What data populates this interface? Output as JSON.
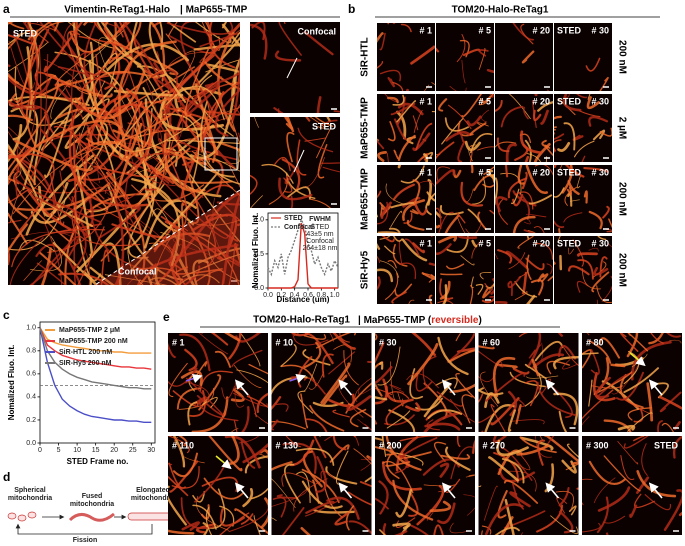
{
  "panel_a": {
    "label": "a",
    "title": "Vimentin-ReTag1-Halo",
    "title2": "| MaP655-TMP",
    "main_labels": [
      "STED",
      "Confocal"
    ],
    "inset_labels": [
      "Confocal",
      "STED"
    ],
    "plot": {
      "type": "line",
      "xlabel": "Distance (um)",
      "ylabel": "Nomalized Fluo. Int.",
      "xlim": [
        0,
        1.05
      ],
      "ylim": [
        0,
        1.1
      ],
      "xticks": [
        {
          "value": 0,
          "label": "0.0"
        },
        {
          "value": 0.2,
          "label": "0.2"
        },
        {
          "value": 0.4,
          "label": "0.4"
        },
        {
          "value": 0.6,
          "label": "0.6"
        },
        {
          "value": 0.8,
          "label": "0.8"
        },
        {
          "value": 1,
          "label": "1.0"
        }
      ],
      "yticks": [
        {
          "value": 0,
          "label": "0.0"
        },
        {
          "value": 0.5,
          "label": "0.5"
        },
        {
          "value": 1,
          "label": "1.0"
        }
      ],
      "x": [
        0,
        0.05,
        0.1,
        0.15,
        0.2,
        0.25,
        0.3,
        0.35,
        0.4,
        0.45,
        0.5,
        0.55,
        0.6,
        0.65,
        0.7,
        0.75,
        0.8,
        0.85,
        0.9,
        0.95,
        1,
        1.05
      ],
      "series": [
        {
          "name": "STED",
          "color": "#d62a1e",
          "dash": false,
          "values": [
            0,
            0,
            0,
            0,
            0,
            0,
            0,
            0,
            0.02,
            0.12,
            0.95,
            0.8,
            0.06,
            0,
            0,
            0,
            0,
            0,
            0,
            0,
            0,
            0
          ]
        },
        {
          "name": "Confocal",
          "color": "#777777",
          "dash": true,
          "values": [
            0.3,
            0.2,
            0.4,
            0.3,
            0.5,
            0.2,
            0.45,
            0.55,
            0.7,
            0.85,
            1,
            0.9,
            0.65,
            0.55,
            0.35,
            0.45,
            0.3,
            0.2,
            0.35,
            0.25,
            0.4,
            0.3
          ]
        }
      ],
      "fwhm_title": "FWHM",
      "fwhm_lines": [
        {
          "text": "STED",
          "color": "#d62a1e"
        },
        {
          "text": "43±5 nm",
          "color": "#d62a1e"
        },
        {
          "text": "Confocal",
          "color": "#888888"
        },
        {
          "text": "264±18 nm",
          "color": "#888888"
        }
      ]
    }
  },
  "panel_b": {
    "label": "b",
    "title": "TOM20-Halo-ReTag1",
    "frames": [
      "# 1",
      "# 5",
      "# 20",
      "# 30"
    ],
    "sted": "STED",
    "rows": [
      {
        "label": "SiR-HTL",
        "conc": "200 nM"
      },
      {
        "label": "MaP655-TMP",
        "conc": "2 µM"
      },
      {
        "label": "MaP655-TMP",
        "conc": "200 nM"
      },
      {
        "label": "SiR-Hy5",
        "conc": "200 nM"
      }
    ]
  },
  "panel_c": {
    "label": "c",
    "plot": {
      "type": "line",
      "xlabel": "STED Frame no.",
      "ylabel": "Nomalized Fluo. Int.",
      "xlim": [
        0,
        31
      ],
      "ylim": [
        0,
        1.05
      ],
      "xticks": [
        0,
        5,
        10,
        15,
        20,
        25,
        30
      ],
      "yticks": [
        {
          "value": 0,
          "label": "0.0"
        },
        {
          "value": 0.2,
          "label": "0.2"
        },
        {
          "value": 0.4,
          "label": "0.4"
        },
        {
          "value": 0.6,
          "label": "0.6"
        },
        {
          "value": 0.8,
          "label": "0.8"
        },
        {
          "value": 1,
          "label": "1.0"
        }
      ],
      "reference_line": 0.5,
      "x": [
        0,
        2,
        4,
        6,
        8,
        10,
        12,
        14,
        16,
        18,
        20,
        22,
        24,
        26,
        28,
        30
      ],
      "series": [
        {
          "name": "MaP655-TMP 2 μM",
          "color": "#f39c3c",
          "values": [
            1,
            0.9,
            0.87,
            0.85,
            0.84,
            0.83,
            0.82,
            0.81,
            0.8,
            0.8,
            0.79,
            0.79,
            0.78,
            0.78,
            0.78,
            0.78
          ]
        },
        {
          "name": "MaP655-TMP 200 nM",
          "color": "#e8353a",
          "values": [
            1,
            0.85,
            0.8,
            0.76,
            0.74,
            0.72,
            0.71,
            0.7,
            0.69,
            0.68,
            0.67,
            0.66,
            0.66,
            0.65,
            0.65,
            0.64
          ]
        },
        {
          "name": "SiR-HTL 200 nM",
          "color": "#4b4fc7",
          "values": [
            1,
            0.7,
            0.5,
            0.38,
            0.32,
            0.28,
            0.25,
            0.23,
            0.22,
            0.21,
            0.2,
            0.2,
            0.19,
            0.19,
            0.18,
            0.18
          ]
        },
        {
          "name": "SIR-Hy5 200 nM",
          "color": "#777777",
          "values": [
            1,
            0.8,
            0.7,
            0.64,
            0.6,
            0.57,
            0.55,
            0.53,
            0.52,
            0.51,
            0.5,
            0.49,
            0.48,
            0.48,
            0.47,
            0.47
          ]
        }
      ]
    }
  },
  "panel_d": {
    "label": "d",
    "stages": [
      [
        "Spherical",
        "mitochondria"
      ],
      [
        "Fused",
        "mitochondria"
      ],
      [
        "Elongated",
        "mitochondria"
      ]
    ],
    "fission": "Fission"
  },
  "panel_e": {
    "label": "e",
    "title": "TOM20-Halo-ReTag1",
    "title2": "| MaP655-TMP (",
    "title_red": "reversible",
    "title_end": ")",
    "frames": [
      "# 1",
      "# 10",
      "# 30",
      "# 60",
      "# 80",
      "# 110",
      "# 130",
      "# 200",
      "# 270",
      "# 300"
    ],
    "sted": "STED"
  }
}
